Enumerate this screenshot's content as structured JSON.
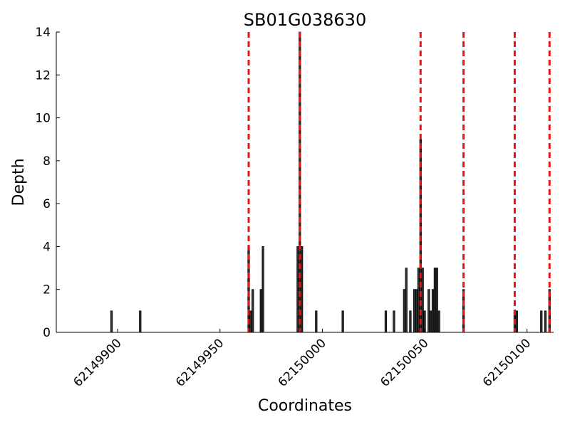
{
  "chart_data": {
    "type": "bar",
    "title": "SB01G038630",
    "xlabel": "Coordinates",
    "ylabel": "Depth",
    "xlim": [
      62149870,
      62150113
    ],
    "ylim": [
      0,
      14
    ],
    "x_ticks": [
      62149900,
      62149950,
      62150000,
      62150050,
      62150100
    ],
    "y_ticks": [
      0,
      2,
      4,
      6,
      8,
      10,
      12,
      14
    ],
    "bars": [
      {
        "x": 62149897,
        "y": 1
      },
      {
        "x": 62149911,
        "y": 1
      },
      {
        "x": 62149964,
        "y": 4
      },
      {
        "x": 62149965,
        "y": 1
      },
      {
        "x": 62149966,
        "y": 2
      },
      {
        "x": 62149970,
        "y": 2
      },
      {
        "x": 62149971,
        "y": 4
      },
      {
        "x": 62149988,
        "y": 4
      },
      {
        "x": 62149989,
        "y": 14
      },
      {
        "x": 62149990,
        "y": 4
      },
      {
        "x": 62149997,
        "y": 1
      },
      {
        "x": 62150010,
        "y": 1
      },
      {
        "x": 62150031,
        "y": 1
      },
      {
        "x": 62150035,
        "y": 1
      },
      {
        "x": 62150040,
        "y": 2
      },
      {
        "x": 62150041,
        "y": 3
      },
      {
        "x": 62150043,
        "y": 1
      },
      {
        "x": 62150045,
        "y": 2
      },
      {
        "x": 62150046,
        "y": 2
      },
      {
        "x": 62150047,
        "y": 3
      },
      {
        "x": 62150048,
        "y": 9
      },
      {
        "x": 62150049,
        "y": 3
      },
      {
        "x": 62150050,
        "y": 1
      },
      {
        "x": 62150052,
        "y": 2
      },
      {
        "x": 62150053,
        "y": 1
      },
      {
        "x": 62150054,
        "y": 2
      },
      {
        "x": 62150055,
        "y": 3
      },
      {
        "x": 62150056,
        "y": 3
      },
      {
        "x": 62150057,
        "y": 1
      },
      {
        "x": 62150069,
        "y": 2
      },
      {
        "x": 62150094,
        "y": 1
      },
      {
        "x": 62150095,
        "y": 1
      },
      {
        "x": 62150107,
        "y": 1
      },
      {
        "x": 62150109,
        "y": 1
      },
      {
        "x": 62150111,
        "y": 2
      }
    ],
    "vlines": [
      62149964,
      62149989,
      62150048,
      62150069,
      62150094,
      62150111
    ],
    "bar_color": "#333333",
    "vline_color": "#ee1111",
    "grid": false
  }
}
